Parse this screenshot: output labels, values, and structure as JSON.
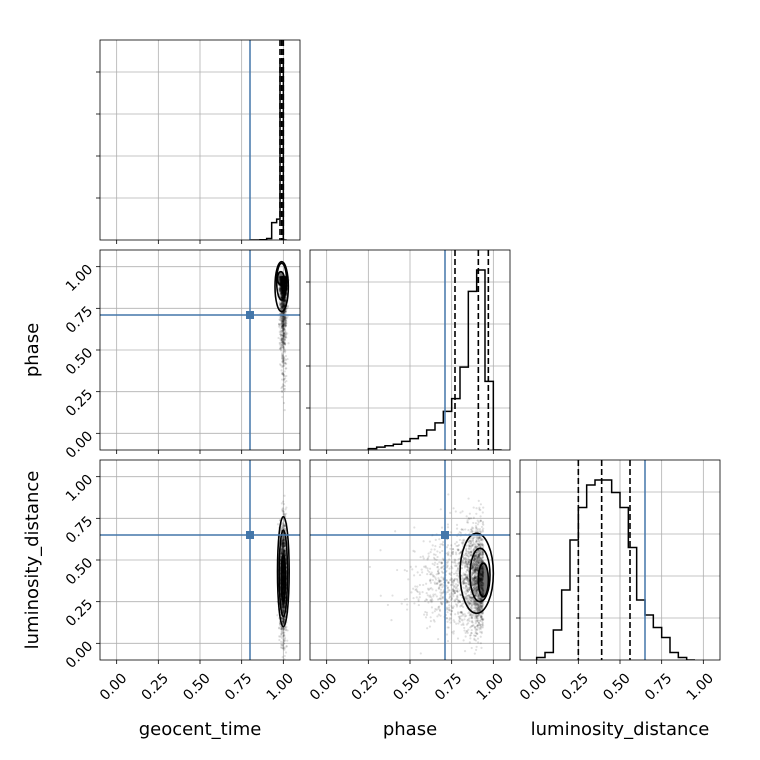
{
  "chart_data": {
    "type": "corner",
    "parameters": [
      "geocent_time",
      "phase",
      "luminosity_distance"
    ],
    "tick_values": [
      0.0,
      0.25,
      0.5,
      0.75,
      1.0
    ],
    "tick_labels": [
      "0.00",
      "0.25",
      "0.50",
      "0.75",
      "1.00"
    ],
    "axis_range": [
      -0.1,
      1.1
    ],
    "grid": true,
    "colors": {
      "truth": "#4477aa",
      "histogram": "#000000",
      "samples": "#000000"
    },
    "truths": {
      "geocent_time": 0.8,
      "phase": 0.71,
      "luminosity_distance": 0.65
    },
    "quantiles": {
      "geocent_time": [
        0.98,
        0.99,
        1.0
      ],
      "phase": [
        0.77,
        0.91,
        0.97
      ],
      "luminosity_distance": [
        0.25,
        0.39,
        0.56
      ]
    },
    "histograms": {
      "geocent_time": {
        "bin_edges": [
          0.8,
          0.86,
          0.9,
          0.93,
          0.96,
          0.98,
          1.0,
          1.02
        ],
        "counts": [
          0,
          1,
          5,
          60,
          72,
          620,
          0
        ]
      },
      "phase": {
        "bin_edges": [
          0.25,
          0.3,
          0.35,
          0.4,
          0.45,
          0.5,
          0.55,
          0.6,
          0.65,
          0.7,
          0.75,
          0.8,
          0.85,
          0.9,
          0.95,
          1.0,
          1.05
        ],
        "counts": [
          1,
          2,
          3,
          4,
          6,
          8,
          10,
          14,
          19,
          27,
          36,
          58,
          111,
          126,
          48,
          0
        ]
      },
      "luminosity_distance": {
        "bin_edges": [
          0.0,
          0.05,
          0.1,
          0.15,
          0.2,
          0.25,
          0.3,
          0.35,
          0.4,
          0.45,
          0.5,
          0.55,
          0.6,
          0.65,
          0.7,
          0.75,
          0.8,
          0.85,
          0.9,
          0.95
        ],
        "counts": [
          1,
          3,
          12,
          28,
          48,
          61,
          70,
          72,
          72,
          67,
          61,
          45,
          24,
          18,
          13,
          9,
          3,
          1,
          0
        ]
      }
    },
    "posterior_2d": [
      {
        "x": "geocent_time",
        "y": "phase",
        "x_center": 1.0,
        "x_spread": 0.01,
        "y_center": 0.94,
        "y_skew_low": 0.25,
        "contours": [
          [
            0.985,
            0.93,
            0.02,
            0.04
          ],
          [
            0.99,
            0.91,
            0.03,
            0.11
          ],
          [
            0.99,
            0.88,
            0.04,
            0.15
          ]
        ]
      },
      {
        "x": "geocent_time",
        "y": "luminosity_distance",
        "x_center": 1.0,
        "x_spread": 0.01,
        "y_center": 0.39,
        "y_spread": 0.15,
        "contours": [
          [
            1.0,
            0.39,
            0.012,
            0.14
          ],
          [
            1.0,
            0.42,
            0.025,
            0.26
          ],
          [
            1.0,
            0.43,
            0.035,
            0.33
          ]
        ]
      },
      {
        "x": "phase",
        "y": "luminosity_distance",
        "x_center": 0.94,
        "x_skew_low": 0.3,
        "y_center": 0.39,
        "y_spread": 0.15,
        "contours": [
          [
            0.94,
            0.38,
            0.03,
            0.1
          ],
          [
            0.92,
            0.41,
            0.06,
            0.16
          ],
          [
            0.9,
            0.42,
            0.1,
            0.24
          ]
        ]
      }
    ]
  }
}
